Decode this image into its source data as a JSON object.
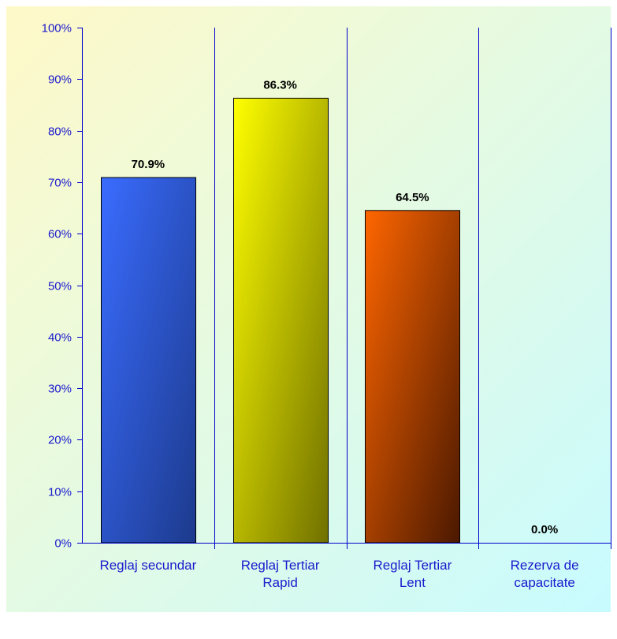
{
  "chart_data": {
    "type": "bar",
    "categories": [
      [
        "Reglaj secundar"
      ],
      [
        "Reglaj Tertiar",
        "Rapid"
      ],
      [
        "Reglaj Tertiar",
        "Lent"
      ],
      [
        "Rezerva de",
        "capacitate"
      ]
    ],
    "values": [
      70.9,
      86.3,
      64.5,
      0.0
    ],
    "data_labels": [
      "70.9%",
      "86.3%",
      "64.5%",
      "0.0%"
    ],
    "y_ticks": [
      "0%",
      "10%",
      "20%",
      "30%",
      "40%",
      "50%",
      "60%",
      "70%",
      "80%",
      "90%",
      "100%"
    ],
    "ylim": [
      0,
      100
    ],
    "grid": "vertical category separators",
    "legend": "none",
    "colors": {
      "axis": "#0000cc",
      "tick_text": "#1a1acc",
      "bars": [
        [
          "#3a6cff",
          "#1c3a8c"
        ],
        [
          "#ffff00",
          "#707000"
        ],
        [
          "#ff6600",
          "#4a1800"
        ],
        [
          "#888888",
          "#444444"
        ]
      ],
      "background": [
        "#fff9c8",
        "#c8fbff"
      ]
    }
  }
}
